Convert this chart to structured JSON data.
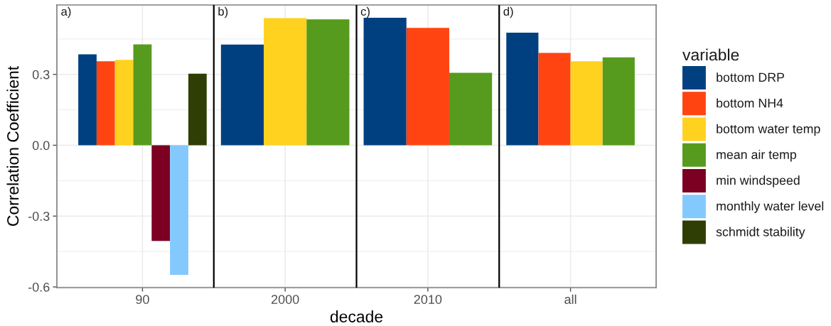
{
  "chart_data": {
    "type": "bar",
    "xlabel": "decade",
    "ylabel": "Correlation Coefficient",
    "legend_title": "variable",
    "legend": "right",
    "grid": true,
    "categories": [
      "90",
      "2000",
      "2010",
      "all"
    ],
    "series": [
      {
        "name": "bottom DRP",
        "color": "#004080",
        "values": [
          0.385,
          0.426,
          0.54,
          0.477
        ]
      },
      {
        "name": "bottom NH4",
        "color": "#ff4412",
        "values": [
          0.356,
          null,
          0.497,
          0.391
        ]
      },
      {
        "name": "bottom water temp",
        "color": "#ffd21f",
        "values": [
          0.362,
          0.538,
          null,
          0.356
        ]
      },
      {
        "name": "mean air temp",
        "color": "#569b1d",
        "values": [
          0.427,
          0.533,
          0.307,
          0.372
        ]
      },
      {
        "name": "min windspeed",
        "color": "#7b0021",
        "values": [
          -0.405,
          null,
          null,
          null
        ]
      },
      {
        "name": "monthly water level",
        "color": "#84c9fd",
        "values": [
          -0.549,
          null,
          null,
          null
        ]
      },
      {
        "name": "schmidt stability",
        "color": "#2e3e05",
        "values": [
          0.303,
          null,
          null,
          null
        ]
      }
    ],
    "ylim": [
      -0.603,
      0.594
    ],
    "yticks": [
      -0.6,
      {
        "value": -0.45,
        "label": null
      },
      -0.3,
      {
        "value": -0.15,
        "label": null
      },
      {
        "value": 0,
        "label": "0.0"
      },
      {
        "value": 0.15,
        "label": null
      },
      0.3,
      {
        "value": 0.45,
        "label": null
      }
    ],
    "annotations": [
      "a)",
      "b)",
      "c)",
      "d)"
    ]
  }
}
